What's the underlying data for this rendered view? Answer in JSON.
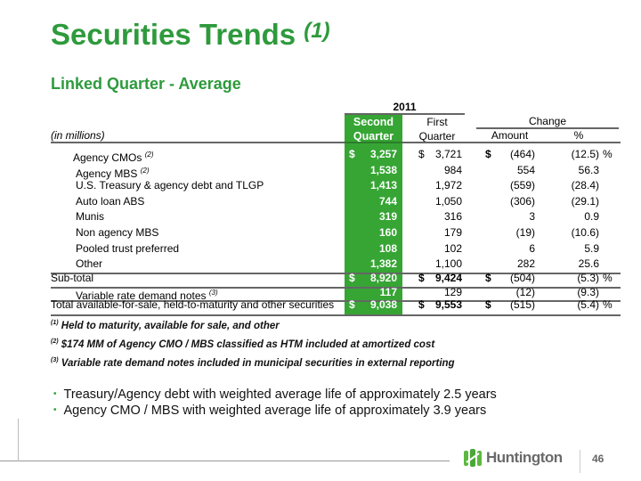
{
  "title": "Securities Trends",
  "title_note": "(1)",
  "subtitle": "Linked Quarter - Average",
  "table": {
    "year": "2011",
    "units": "(in millions)",
    "col_second": [
      "Second",
      "Quarter"
    ],
    "col_first": [
      "First",
      "Quarter"
    ],
    "col_change": "Change",
    "col_amount": "Amount",
    "col_pct": "%",
    "rows": [
      {
        "label": "Agency CMOs",
        "note": "(2)",
        "indent": true,
        "q2": "3,257",
        "q1": "3,721",
        "amt": "(464)",
        "pct": "(12.5)",
        "dollar": true,
        "pctsign": true
      },
      {
        "label": "Agency MBS",
        "note": "(2)",
        "indent": true,
        "q2": "1,538",
        "q1": "984",
        "amt": "554",
        "pct": "56.3"
      },
      {
        "label": "U.S. Treasury & agency debt and TLGP",
        "indent": true,
        "q2": "1,413",
        "q1": "1,972",
        "amt": "(559)",
        "pct": "(28.4)"
      },
      {
        "label": "Auto loan ABS",
        "indent": true,
        "q2": "744",
        "q1": "1,050",
        "amt": "(306)",
        "pct": "(29.1)"
      },
      {
        "label": "Munis",
        "indent": true,
        "q2": "319",
        "q1": "316",
        "amt": "3",
        "pct": "0.9"
      },
      {
        "label": "Non agency MBS",
        "indent": true,
        "q2": "160",
        "q1": "179",
        "amt": "(19)",
        "pct": "(10.6)"
      },
      {
        "label": "Pooled trust preferred",
        "indent": true,
        "q2": "108",
        "q1": "102",
        "amt": "6",
        "pct": "5.9"
      },
      {
        "label": "Other",
        "indent": true,
        "q2": "1,382",
        "q1": "1,100",
        "amt": "282",
        "pct": "25.6"
      },
      {
        "label": "Sub-total",
        "q2": "8,920",
        "q1": "9,424",
        "amt": "(504)",
        "pct": "(5.3)",
        "dollar": true,
        "pctsign": true,
        "bold1": true
      },
      {
        "label": "Variable rate demand notes",
        "note": "(3)",
        "indent": true,
        "q2": "117",
        "q1": "129",
        "amt": "(12)",
        "pct": "(9.3)"
      },
      {
        "label": "Total available-for-sale, held-to-maturity and other securities",
        "q2": "9,038",
        "q1": "9,553",
        "amt": "(515)",
        "pct": "(5.4)",
        "dollar": true,
        "pctsign": true,
        "bold1": true
      }
    ],
    "dollar": "$",
    "pct_sign": "%"
  },
  "footnotes": [
    {
      "mark": "(1)",
      "text": "Held to maturity, available for sale, and other"
    },
    {
      "mark": "(2)",
      "text": "$174 MM of Agency CMO / MBS classified as HTM included at amortized cost"
    },
    {
      "mark": "(3)",
      "text": "Variable rate demand notes included in municipal securities in external reporting"
    }
  ],
  "bullets": [
    "Treasury/Agency debt with weighted average life of approximately 2.5 years",
    "Agency CMO / MBS  with weighted average life of approximately 3.9 years"
  ],
  "logo_text": "Huntington",
  "page_number": "46"
}
